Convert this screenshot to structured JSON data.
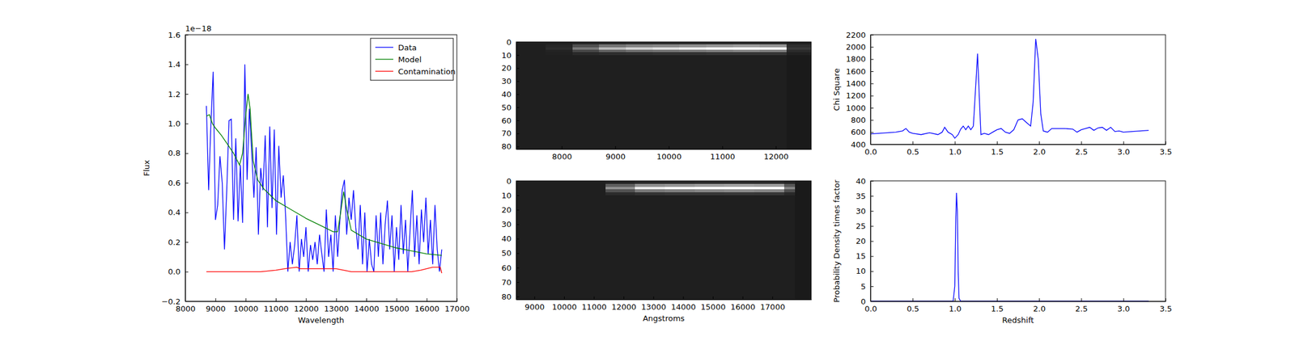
{
  "chart_data": [
    {
      "type": "line",
      "xlabel": "Wavelength",
      "ylabel": "Flux",
      "annotations": [
        "1e−18"
      ],
      "xlim": [
        8000,
        17000
      ],
      "xticks": [
        8000,
        9000,
        10000,
        11000,
        12000,
        13000,
        14000,
        15000,
        16000,
        17000
      ],
      "ylim": [
        -0.2,
        1.6
      ],
      "yticks": [
        {
          "value": -0.2,
          "label": "−0.2"
        },
        {
          "value": 0,
          "label": "0.0"
        },
        0.2,
        0.4,
        0.6,
        0.8,
        {
          "value": 1,
          "label": "1.0"
        },
        1.2,
        1.4,
        1.6
      ],
      "legend": "upper right",
      "series": [
        {
          "name": "Data",
          "color": "#0000ff",
          "x": [
            8700,
            8775,
            8850,
            8925,
            9000,
            9075,
            9150,
            9225,
            9300,
            9375,
            9450,
            9525,
            9600,
            9675,
            9750,
            9825,
            9900,
            9975,
            10050,
            10125,
            10200,
            10275,
            10350,
            10425,
            10500,
            10575,
            10650,
            10725,
            10800,
            10875,
            10950,
            11025,
            11100,
            11175,
            11250,
            11325,
            11400,
            11475,
            11550,
            11625,
            11700,
            11775,
            11850,
            11925,
            12000,
            12075,
            12150,
            12225,
            12300,
            12375,
            12450,
            12525,
            12600,
            12675,
            12750,
            12825,
            12900,
            12975,
            13050,
            13125,
            13200,
            13275,
            13350,
            13425,
            13500,
            13575,
            13650,
            13725,
            13800,
            13875,
            13950,
            14025,
            14100,
            14175,
            14250,
            14325,
            14400,
            14475,
            14550,
            14625,
            14700,
            14775,
            14850,
            14925,
            15000,
            15075,
            15150,
            15225,
            15300,
            15375,
            15450,
            15525,
            15600,
            15675,
            15750,
            15825,
            15900,
            15975,
            16050,
            16125,
            16200,
            16275,
            16350,
            16425,
            16500
          ],
          "values": [
            1.12,
            0.55,
            1.0,
            1.35,
            0.35,
            0.45,
            0.78,
            0.6,
            0.15,
            0.55,
            1.02,
            1.03,
            0.35,
            0.9,
            0.34,
            0.72,
            0.33,
            1.4,
            0.62,
            1.1,
            0.82,
            0.5,
            0.84,
            0.25,
            0.7,
            0.55,
            0.92,
            0.3,
            0.98,
            0.43,
            0.96,
            0.25,
            0.85,
            0.5,
            0.65,
            0.38,
            0.0,
            0.2,
            0.05,
            0.18,
            0.38,
            0.0,
            0.22,
            0.1,
            0.3,
            0.0,
            0.18,
            0.08,
            0.2,
            0.05,
            0.25,
            0.12,
            0.0,
            0.42,
            0.1,
            0.25,
            0.0,
            0.38,
            0.1,
            0.35,
            0.55,
            0.62,
            0.25,
            0.5,
            0.35,
            0.55,
            0.3,
            0.15,
            0.45,
            0.05,
            0.4,
            0.0,
            0.22,
            0.05,
            0.0,
            0.38,
            0.1,
            0.4,
            0.05,
            0.32,
            0.48,
            0.15,
            0.38,
            0.0,
            0.3,
            0.08,
            0.45,
            0.12,
            0.35,
            0.0,
            0.28,
            0.55,
            0.1,
            0.38,
            0.05,
            0.42,
            0.2,
            0.5,
            0.12,
            0.35,
            0.05,
            0.45,
            0.15,
            0.0,
            0.15
          ]
        },
        {
          "name": "Model",
          "color": "#008000",
          "x": [
            8700,
            8800,
            8900,
            9000,
            9200,
            9400,
            9600,
            9800,
            9900,
            10000,
            10080,
            10150,
            10250,
            10400,
            10600,
            10800,
            11000,
            11500,
            12000,
            12500,
            12900,
            13050,
            13150,
            13250,
            13350,
            13500,
            14000,
            14500,
            15000,
            15500,
            16000,
            16500
          ],
          "values": [
            1.05,
            1.06,
            1.0,
            0.97,
            0.92,
            0.86,
            0.8,
            0.72,
            0.8,
            1.05,
            1.2,
            1.1,
            0.75,
            0.62,
            0.56,
            0.52,
            0.48,
            0.42,
            0.36,
            0.31,
            0.27,
            0.27,
            0.4,
            0.54,
            0.42,
            0.28,
            0.22,
            0.19,
            0.16,
            0.14,
            0.12,
            0.11
          ]
        },
        {
          "name": "Contamination",
          "color": "#ff0000",
          "x": [
            8700,
            10500,
            11000,
            11300,
            11700,
            11800,
            12500,
            13000,
            13500,
            15500,
            15800,
            16200,
            16450,
            16500
          ],
          "values": [
            0.0,
            0.0,
            0.01,
            0.02,
            0.03,
            0.02,
            0.02,
            0.02,
            0.0,
            0.0,
            0.01,
            0.03,
            0.03,
            -0.01
          ]
        }
      ]
    },
    {
      "type": "heatmap",
      "xlim": [
        7150,
        12660
      ],
      "xticks": [
        8000,
        9000,
        10000,
        11000,
        12000
      ],
      "ylim": [
        82,
        0
      ],
      "yticks": [
        0,
        10,
        20,
        30,
        40,
        50,
        60,
        70,
        80
      ],
      "color_range": [
        0,
        1
      ],
      "x_edges": [
        7150,
        7700,
        8200,
        8700,
        9200,
        9700,
        10200,
        10700,
        11200,
        11700,
        12200,
        12660
      ],
      "y_edges": [
        0,
        2,
        4,
        6,
        8,
        10,
        82
      ],
      "cells": [
        [
          0.12,
          0.12,
          0.14,
          0.15,
          0.16,
          0.16,
          0.16,
          0.16,
          0.17,
          0.16,
          0.12
        ],
        [
          0.12,
          0.15,
          0.31,
          0.45,
          0.51,
          0.53,
          0.56,
          0.59,
          0.62,
          0.59,
          0.18
        ],
        [
          0.12,
          0.17,
          0.47,
          0.72,
          0.82,
          0.87,
          0.92,
          0.97,
          1.0,
          0.97,
          0.22
        ],
        [
          0.12,
          0.14,
          0.28,
          0.39,
          0.44,
          0.46,
          0.48,
          0.5,
          0.53,
          0.5,
          0.17
        ],
        [
          0.12,
          0.13,
          0.16,
          0.18,
          0.19,
          0.2,
          0.2,
          0.21,
          0.21,
          0.21,
          0.13
        ],
        [
          0.12,
          0.12,
          0.12,
          0.12,
          0.12,
          0.12,
          0.12,
          0.12,
          0.12,
          0.12,
          0.1
        ]
      ]
    },
    {
      "type": "heatmap",
      "xlabel": "Angstroms",
      "xlim": [
        8390,
        18305
      ],
      "xticks": [
        9000,
        10000,
        11000,
        12000,
        13000,
        14000,
        15000,
        16000,
        17000
      ],
      "ylim": [
        82,
        0
      ],
      "yticks": [
        0,
        10,
        20,
        30,
        40,
        50,
        60,
        70,
        80
      ],
      "color_range": [
        0,
        1
      ],
      "x_edges": [
        8390,
        9390,
        10390,
        11390,
        12390,
        13390,
        14390,
        15390,
        16390,
        17390,
        17770,
        18305
      ],
      "y_edges": [
        0,
        2,
        4,
        6,
        8,
        10,
        82
      ],
      "cells": [
        [
          0.12,
          0.12,
          0.12,
          0.14,
          0.16,
          0.16,
          0.17,
          0.17,
          0.17,
          0.14,
          0.1
        ],
        [
          0.12,
          0.12,
          0.12,
          0.37,
          0.56,
          0.59,
          0.62,
          0.64,
          0.62,
          0.34,
          0.1
        ],
        [
          0.12,
          0.12,
          0.12,
          0.57,
          0.92,
          0.97,
          1.0,
          1.0,
          1.0,
          0.52,
          0.1
        ],
        [
          0.12,
          0.12,
          0.12,
          0.32,
          0.48,
          0.5,
          0.53,
          0.55,
          0.53,
          0.3,
          0.1
        ],
        [
          0.12,
          0.12,
          0.12,
          0.17,
          0.2,
          0.21,
          0.21,
          0.22,
          0.21,
          0.16,
          0.1
        ],
        [
          0.12,
          0.12,
          0.12,
          0.12,
          0.12,
          0.12,
          0.12,
          0.12,
          0.12,
          0.12,
          0.1
        ]
      ]
    },
    {
      "type": "line",
      "ylabel": "Chi Square",
      "color": "#0000ff",
      "xlim": [
        0,
        3.5
      ],
      "xticks": [
        {
          "value": 0,
          "label": "0.0"
        },
        0.5,
        {
          "value": 1,
          "label": "1.0"
        },
        1.5,
        {
          "value": 2,
          "label": "2.0"
        },
        2.5,
        {
          "value": 3,
          "label": "3.0"
        },
        3.5
      ],
      "ylim": [
        400,
        2200
      ],
      "yticks": [
        400,
        600,
        800,
        1000,
        1200,
        1400,
        1600,
        1800,
        2000,
        2200
      ],
      "x": [
        0.0,
        0.1,
        0.2,
        0.3,
        0.38,
        0.42,
        0.46,
        0.5,
        0.6,
        0.7,
        0.8,
        0.85,
        0.88,
        0.92,
        0.97,
        1.0,
        1.04,
        1.07,
        1.1,
        1.13,
        1.16,
        1.19,
        1.22,
        1.25,
        1.27,
        1.29,
        1.31,
        1.35,
        1.4,
        1.45,
        1.5,
        1.55,
        1.6,
        1.65,
        1.7,
        1.75,
        1.8,
        1.85,
        1.9,
        1.93,
        1.96,
        1.99,
        2.02,
        2.05,
        2.1,
        2.15,
        2.2,
        2.3,
        2.4,
        2.45,
        2.5,
        2.55,
        2.6,
        2.65,
        2.7,
        2.75,
        2.8,
        2.85,
        2.9,
        2.95,
        3.0,
        3.1,
        3.2,
        3.3
      ],
      "values": [
        570,
        580,
        590,
        600,
        620,
        660,
        600,
        580,
        560,
        590,
        560,
        600,
        680,
        600,
        560,
        500,
        560,
        650,
        700,
        640,
        700,
        640,
        700,
        1400,
        1890,
        1200,
        560,
        580,
        560,
        600,
        640,
        660,
        600,
        580,
        640,
        800,
        820,
        760,
        700,
        1100,
        2130,
        1800,
        900,
        620,
        600,
        660,
        660,
        660,
        650,
        600,
        640,
        660,
        680,
        630,
        670,
        680,
        630,
        680,
        610,
        620,
        600,
        610,
        620,
        630
      ]
    },
    {
      "type": "line",
      "xlabel": "Redshift",
      "ylabel": "Probability Density times factor",
      "color": "#0000ff",
      "xlim": [
        0,
        3.5
      ],
      "xticks": [
        {
          "value": 0,
          "label": "0.0"
        },
        0.5,
        {
          "value": 1,
          "label": "1.0"
        },
        1.5,
        {
          "value": 2,
          "label": "2.0"
        },
        2.5,
        {
          "value": 3,
          "label": "3.0"
        },
        3.5
      ],
      "ylim": [
        0,
        40
      ],
      "yticks": [
        0,
        5,
        10,
        15,
        20,
        25,
        30,
        35,
        40
      ],
      "x": [
        0.0,
        0.5,
        0.98,
        1.0,
        1.01,
        1.02,
        1.03,
        1.04,
        1.05,
        1.07,
        2.0,
        3.3
      ],
      "values": [
        0,
        0,
        0,
        5,
        25,
        36,
        30,
        10,
        1,
        0,
        0,
        0
      ]
    }
  ]
}
